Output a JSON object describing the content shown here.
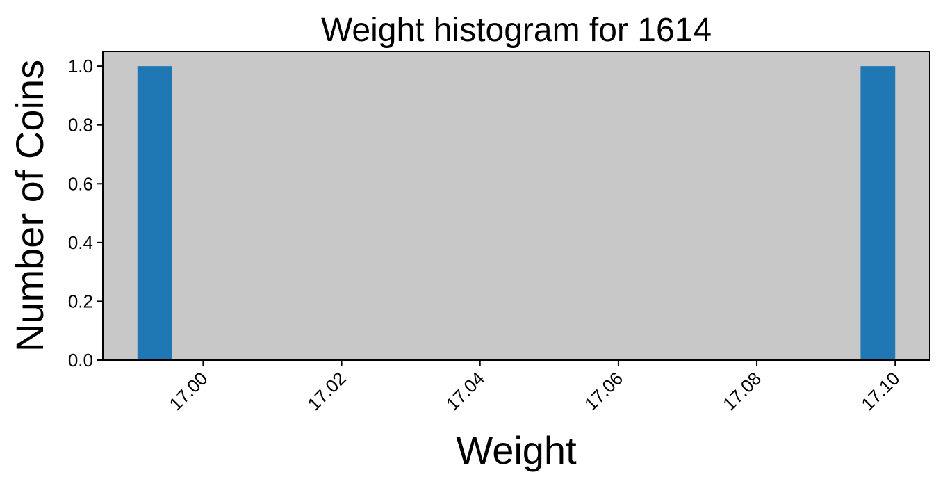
{
  "chart_data": {
    "type": "bar",
    "title": "Weight histogram for 1614",
    "xlabel": "Weight",
    "ylabel": "Number of Coins",
    "bins": [
      {
        "x_start": 16.9905,
        "x_end": 16.9955,
        "count": 1
      },
      {
        "x_start": 17.095,
        "x_end": 17.1,
        "count": 1
      }
    ],
    "xlim": [
      16.9855,
      17.105
    ],
    "ylim": [
      0,
      1.05
    ],
    "xticks": [
      17.0,
      17.02,
      17.04,
      17.06,
      17.08,
      17.1
    ],
    "xtick_labels": [
      "17.00",
      "17.02",
      "17.04",
      "17.06",
      "17.08",
      "17.10"
    ],
    "yticks": [
      0.0,
      0.2,
      0.4,
      0.6,
      0.8,
      1.0
    ],
    "ytick_labels": [
      "0.0",
      "0.2",
      "0.4",
      "0.6",
      "0.8",
      "1.0"
    ],
    "grid": false,
    "legend": "none",
    "colors": {
      "bar": "#1f77b4",
      "plot_background": "#c8c8c8",
      "page_background": "#ffffff"
    }
  }
}
